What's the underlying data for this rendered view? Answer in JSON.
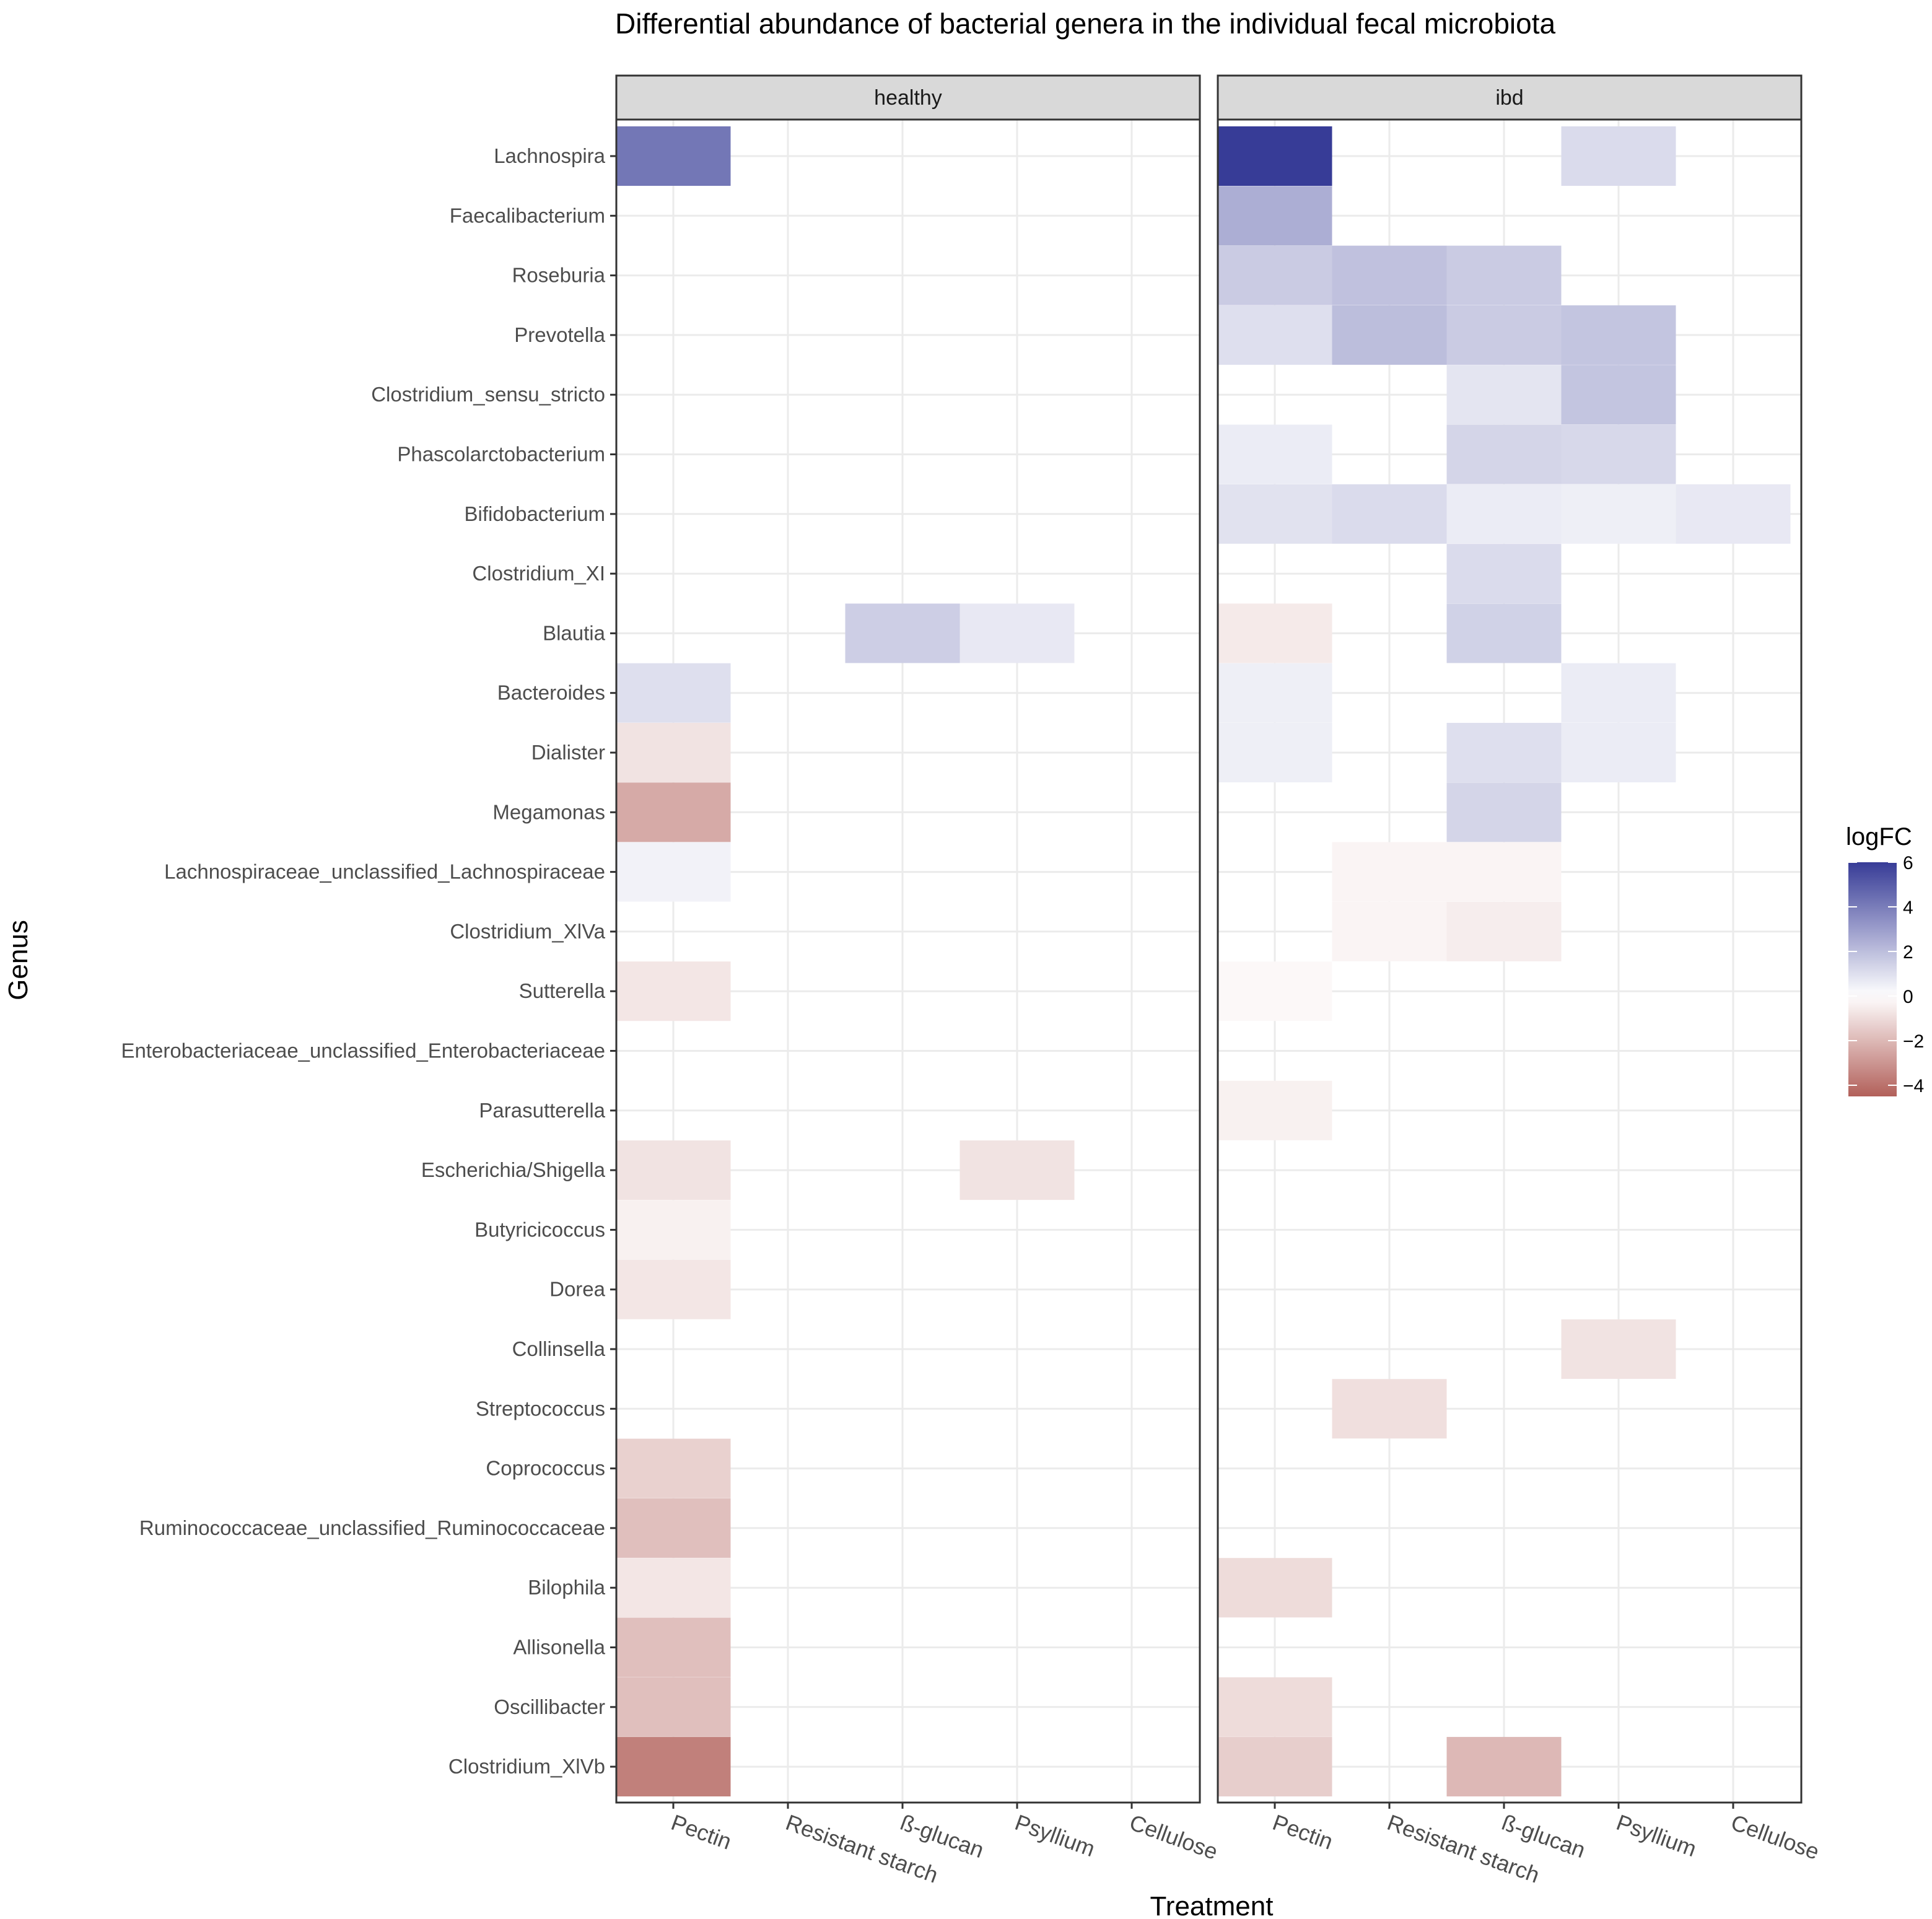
{
  "chart_data": {
    "type": "heatmap",
    "title": "Differential abundance of bacterial genera in the individual fecal microbiota",
    "xlabel": "Treatment",
    "ylabel": "Genus",
    "facets": [
      "healthy",
      "ibd"
    ],
    "treatments": [
      "Pectin",
      "Resistant starch",
      "ß-glucan",
      "Psyllium",
      "Cellulose"
    ],
    "genera": [
      "Lachnospira",
      "Faecalibacterium",
      "Roseburia",
      "Prevotella",
      "Clostridium_sensu_stricto",
      "Phascolarctobacterium",
      "Bifidobacterium",
      "Clostridium_XI",
      "Blautia",
      "Bacteroides",
      "Dialister",
      "Megamonas",
      "Lachnospiraceae_unclassified_Lachnospiraceae",
      "Clostridium_XlVa",
      "Sutterella",
      "Enterobacteriaceae_unclassified_Enterobacteriaceae",
      "Parasutterella",
      "Escherichia/Shigella",
      "Butyricicoccus",
      "Dorea",
      "Collinsella",
      "Streptococcus",
      "Coprococcus",
      "Ruminococcaceae_unclassified_Ruminococcaceae",
      "Bilophila",
      "Allisonella",
      "Oscillibacter",
      "Clostridium_XlVb"
    ],
    "legend": {
      "title": "logFC",
      "min": -4.5,
      "max": 6,
      "ticks": [
        6,
        4,
        2,
        0,
        -2,
        -4
      ],
      "tick_labels": [
        "6",
        "4",
        "2",
        "0",
        "−2",
        "−4"
      ],
      "low_color": "#b2605a",
      "mid_color": "#ffffff",
      "high_color": "#373c97"
    },
    "cells": [
      {
        "facet": "healthy",
        "genus": "Lachnospira",
        "treatment": "Pectin",
        "logFC": 4.2
      },
      {
        "facet": "healthy",
        "genus": "Bacteroides",
        "treatment": "Pectin",
        "logFC": 1.0
      },
      {
        "facet": "healthy",
        "genus": "Dialister",
        "treatment": "Pectin",
        "logFC": -0.8
      },
      {
        "facet": "healthy",
        "genus": "Megamonas",
        "treatment": "Pectin",
        "logFC": -2.4
      },
      {
        "facet": "healthy",
        "genus": "Lachnospiraceae_unclassified_Lachnospiraceae",
        "treatment": "Pectin",
        "logFC": 0.4
      },
      {
        "facet": "healthy",
        "genus": "Sutterella",
        "treatment": "Pectin",
        "logFC": -0.7
      },
      {
        "facet": "healthy",
        "genus": "Escherichia/Shigella",
        "treatment": "Pectin",
        "logFC": -0.8
      },
      {
        "facet": "healthy",
        "genus": "Butyricicoccus",
        "treatment": "Pectin",
        "logFC": -0.4
      },
      {
        "facet": "healthy",
        "genus": "Dorea",
        "treatment": "Pectin",
        "logFC": -0.7
      },
      {
        "facet": "healthy",
        "genus": "Coprococcus",
        "treatment": "Pectin",
        "logFC": -1.3
      },
      {
        "facet": "healthy",
        "genus": "Ruminococcaceae_unclassified_Ruminococcaceae",
        "treatment": "Pectin",
        "logFC": -1.8
      },
      {
        "facet": "healthy",
        "genus": "Bilophila",
        "treatment": "Pectin",
        "logFC": -0.7
      },
      {
        "facet": "healthy",
        "genus": "Allisonella",
        "treatment": "Pectin",
        "logFC": -1.8
      },
      {
        "facet": "healthy",
        "genus": "Oscillibacter",
        "treatment": "Pectin",
        "logFC": -1.8
      },
      {
        "facet": "healthy",
        "genus": "Clostridium_XlVb",
        "treatment": "Pectin",
        "logFC": -3.6
      },
      {
        "facet": "healthy",
        "genus": "Blautia",
        "treatment": "ß-glucan",
        "logFC": 1.5
      },
      {
        "facet": "healthy",
        "genus": "Blautia",
        "treatment": "Psyllium",
        "logFC": 0.7
      },
      {
        "facet": "healthy",
        "genus": "Escherichia/Shigella",
        "treatment": "Psyllium",
        "logFC": -0.8
      },
      {
        "facet": "ibd",
        "genus": "Lachnospira",
        "treatment": "Pectin",
        "logFC": 6.0
      },
      {
        "facet": "ibd",
        "genus": "Lachnospira",
        "treatment": "Psyllium",
        "logFC": 1.1
      },
      {
        "facet": "ibd",
        "genus": "Faecalibacterium",
        "treatment": "Pectin",
        "logFC": 2.5
      },
      {
        "facet": "ibd",
        "genus": "Roseburia",
        "treatment": "Pectin",
        "logFC": 1.6
      },
      {
        "facet": "ibd",
        "genus": "Roseburia",
        "treatment": "Resistant starch",
        "logFC": 1.9
      },
      {
        "facet": "ibd",
        "genus": "Roseburia",
        "treatment": "ß-glucan",
        "logFC": 1.6
      },
      {
        "facet": "ibd",
        "genus": "Prevotella",
        "treatment": "Pectin",
        "logFC": 1.0
      },
      {
        "facet": "ibd",
        "genus": "Prevotella",
        "treatment": "Resistant starch",
        "logFC": 2.0
      },
      {
        "facet": "ibd",
        "genus": "Prevotella",
        "treatment": "ß-glucan",
        "logFC": 1.6
      },
      {
        "facet": "ibd",
        "genus": "Prevotella",
        "treatment": "Psyllium",
        "logFC": 1.8
      },
      {
        "facet": "ibd",
        "genus": "Clostridium_sensu_stricto",
        "treatment": "ß-glucan",
        "logFC": 0.8
      },
      {
        "facet": "ibd",
        "genus": "Clostridium_sensu_stricto",
        "treatment": "Psyllium",
        "logFC": 1.8
      },
      {
        "facet": "ibd",
        "genus": "Phascolarctobacterium",
        "treatment": "Pectin",
        "logFC": 0.6
      },
      {
        "facet": "ibd",
        "genus": "Phascolarctobacterium",
        "treatment": "ß-glucan",
        "logFC": 1.3
      },
      {
        "facet": "ibd",
        "genus": "Phascolarctobacterium",
        "treatment": "Psyllium",
        "logFC": 1.2
      },
      {
        "facet": "ibd",
        "genus": "Bifidobacterium",
        "treatment": "Pectin",
        "logFC": 0.9
      },
      {
        "facet": "ibd",
        "genus": "Bifidobacterium",
        "treatment": "Resistant starch",
        "logFC": 1.1
      },
      {
        "facet": "ibd",
        "genus": "Bifidobacterium",
        "treatment": "ß-glucan",
        "logFC": 0.6
      },
      {
        "facet": "ibd",
        "genus": "Bifidobacterium",
        "treatment": "Psyllium",
        "logFC": 0.5
      },
      {
        "facet": "ibd",
        "genus": "Bifidobacterium",
        "treatment": "Cellulose",
        "logFC": 0.7
      },
      {
        "facet": "ibd",
        "genus": "Clostridium_XI",
        "treatment": "ß-glucan",
        "logFC": 1.1
      },
      {
        "facet": "ibd",
        "genus": "Blautia",
        "treatment": "Pectin",
        "logFC": -0.6
      },
      {
        "facet": "ibd",
        "genus": "Blautia",
        "treatment": "ß-glucan",
        "logFC": 1.4
      },
      {
        "facet": "ibd",
        "genus": "Bacteroides",
        "treatment": "Pectin",
        "logFC": 0.5
      },
      {
        "facet": "ibd",
        "genus": "Bacteroides",
        "treatment": "Psyllium",
        "logFC": 0.6
      },
      {
        "facet": "ibd",
        "genus": "Dialister",
        "treatment": "Pectin",
        "logFC": 0.5
      },
      {
        "facet": "ibd",
        "genus": "Dialister",
        "treatment": "ß-glucan",
        "logFC": 1.0
      },
      {
        "facet": "ibd",
        "genus": "Dialister",
        "treatment": "Psyllium",
        "logFC": 0.6
      },
      {
        "facet": "ibd",
        "genus": "Megamonas",
        "treatment": "ß-glucan",
        "logFC": 1.3
      },
      {
        "facet": "ibd",
        "genus": "Lachnospiraceae_unclassified_Lachnospiraceae",
        "treatment": "Resistant starch",
        "logFC": -0.3
      },
      {
        "facet": "ibd",
        "genus": "Lachnospiraceae_unclassified_Lachnospiraceae",
        "treatment": "ß-glucan",
        "logFC": -0.3
      },
      {
        "facet": "ibd",
        "genus": "Clostridium_XlVa",
        "treatment": "Resistant starch",
        "logFC": -0.3
      },
      {
        "facet": "ibd",
        "genus": "Clostridium_XlVa",
        "treatment": "ß-glucan",
        "logFC": -0.5
      },
      {
        "facet": "ibd",
        "genus": "Sutterella",
        "treatment": "Pectin",
        "logFC": -0.2
      },
      {
        "facet": "ibd",
        "genus": "Parasutterella",
        "treatment": "Pectin",
        "logFC": -0.4
      },
      {
        "facet": "ibd",
        "genus": "Collinsella",
        "treatment": "Psyllium",
        "logFC": -0.8
      },
      {
        "facet": "ibd",
        "genus": "Streptococcus",
        "treatment": "Resistant starch",
        "logFC": -0.9
      },
      {
        "facet": "ibd",
        "genus": "Bilophila",
        "treatment": "Pectin",
        "logFC": -1.0
      },
      {
        "facet": "ibd",
        "genus": "Oscillibacter",
        "treatment": "Pectin",
        "logFC": -1.0
      },
      {
        "facet": "ibd",
        "genus": "Clostridium_XlVb",
        "treatment": "Pectin",
        "logFC": -1.4
      },
      {
        "facet": "ibd",
        "genus": "Clostridium_XlVb",
        "treatment": "ß-glucan",
        "logFC": -2.0
      }
    ]
  }
}
